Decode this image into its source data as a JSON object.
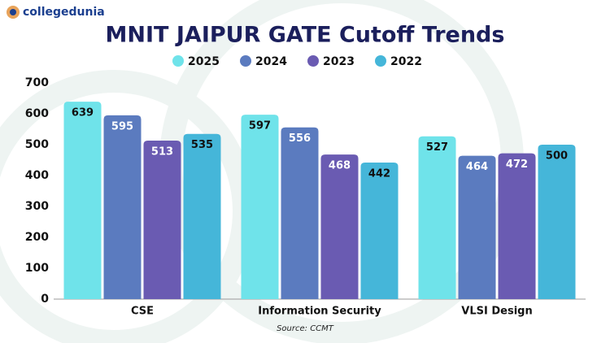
{
  "brand": "collegedunia",
  "chart_data": {
    "type": "bar",
    "title": "MNIT JAIPUR GATE Cutoff Trends",
    "categories": [
      "CSE",
      "Information Security",
      "VLSI Design"
    ],
    "series": [
      {
        "name": "2025",
        "color": "#6fe3ea",
        "values": [
          639,
          597,
          527
        ]
      },
      {
        "name": "2024",
        "color": "#5b7bbf",
        "values": [
          595,
          556,
          464
        ]
      },
      {
        "name": "2023",
        "color": "#6a5bb2",
        "values": [
          513,
          468,
          472
        ]
      },
      {
        "name": "2022",
        "color": "#45b6d9",
        "values": [
          535,
          442,
          500
        ]
      }
    ],
    "ylim": [
      0,
      700
    ],
    "yticks": [
      0,
      100,
      200,
      300,
      400,
      500,
      600,
      700
    ],
    "source": "Source: CCMT",
    "legend": "top",
    "grid": false
  }
}
